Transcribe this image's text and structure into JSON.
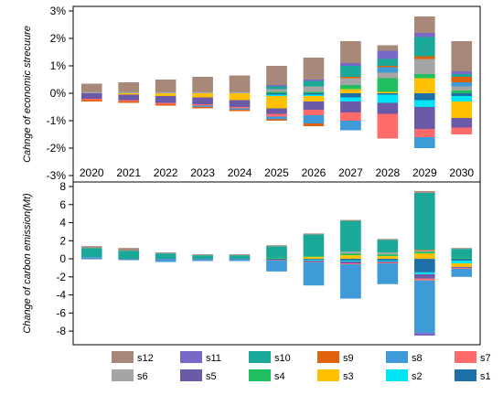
{
  "chart_data": [
    {
      "type": "bar",
      "stacked": true,
      "ylabel": "Cahnge of economic strecuure",
      "ylim": [
        -3,
        3
      ],
      "yticks": [
        "-3%",
        "-2%",
        "-1%",
        "0%",
        "1%",
        "2%",
        "3%"
      ],
      "ytick_values": [
        -3,
        -2,
        -1,
        0,
        1,
        2,
        3
      ],
      "categories": [
        "2020",
        "2021",
        "2022",
        "2023",
        "2024",
        "2025",
        "2026",
        "2027",
        "2028",
        "2029",
        "2030"
      ],
      "series": [
        {
          "name": "s1",
          "values": [
            0,
            0,
            0,
            0,
            0,
            -0.05,
            -0.05,
            -0.15,
            -0.05,
            -0.25,
            -0.1
          ]
        },
        {
          "name": "s2",
          "values": [
            0,
            0,
            0,
            0,
            0,
            -0.05,
            -0.05,
            -0.15,
            -0.3,
            -0.25,
            -0.2
          ]
        },
        {
          "name": "s3",
          "values": [
            0,
            -0.05,
            -0.1,
            -0.15,
            -0.25,
            -0.45,
            -0.2,
            0.15,
            0.05,
            0.55,
            -0.6
          ]
        },
        {
          "name": "s4",
          "values": [
            0,
            0,
            0,
            0,
            0,
            0.05,
            0.05,
            0.15,
            0.5,
            0.15,
            0.1
          ]
        },
        {
          "name": "s5",
          "values": [
            -0.2,
            -0.2,
            -0.25,
            -0.25,
            -0.25,
            -0.2,
            -0.3,
            -0.4,
            -0.4,
            -0.8,
            -0.35
          ]
        },
        {
          "name": "s6",
          "values": [
            0.05,
            0.05,
            0.05,
            0.05,
            0.05,
            0.1,
            0.2,
            0.25,
            0.2,
            0.55,
            0.15
          ]
        },
        {
          "name": "s7",
          "values": [
            -0.05,
            -0.05,
            -0.05,
            -0.05,
            -0.05,
            -0.1,
            -0.2,
            -0.3,
            -0.9,
            -0.3,
            -0.25
          ]
        },
        {
          "name": "s8",
          "values": [
            0,
            0,
            0,
            -0.05,
            -0.05,
            -0.1,
            -0.3,
            -0.35,
            0.2,
            -0.4,
            0.15
          ]
        },
        {
          "name": "s9",
          "values": [
            -0.05,
            -0.05,
            -0.05,
            -0.05,
            -0.05,
            -0.05,
            -0.1,
            0.05,
            0.05,
            0.1,
            0.2
          ]
        },
        {
          "name": "s10",
          "values": [
            0,
            0,
            0,
            0,
            0,
            0.1,
            0.2,
            0.4,
            0.25,
            0.7,
            0.1
          ]
        },
        {
          "name": "s11",
          "values": [
            0,
            0,
            0,
            0,
            0,
            0.05,
            0.05,
            0.1,
            0.3,
            0.15,
            0.1
          ]
        },
        {
          "name": "s12",
          "values": [
            0.3,
            0.35,
            0.45,
            0.55,
            0.6,
            0.7,
            0.8,
            0.8,
            0.2,
            0.6,
            1.1
          ]
        }
      ]
    },
    {
      "type": "bar",
      "stacked": true,
      "ylabel": "Change of carbon emission(Mt)",
      "ylim": [
        -9,
        8
      ],
      "yticks": [
        "-8",
        "-6",
        "-4",
        "-2",
        "0",
        "2",
        "4",
        "6",
        "8"
      ],
      "ytick_values": [
        -8,
        -6,
        -4,
        -2,
        0,
        2,
        4,
        6,
        8
      ],
      "categories": [
        "2020",
        "2021",
        "2022",
        "2023",
        "2024",
        "2025",
        "2026",
        "2027",
        "2028",
        "2029",
        "2030"
      ],
      "series": [
        {
          "name": "s1",
          "values": [
            0,
            0,
            0,
            0,
            0,
            -0.1,
            -0.1,
            -0.2,
            -0.2,
            -1.5,
            -0.2
          ]
        },
        {
          "name": "s2",
          "values": [
            0,
            0,
            0,
            0,
            0,
            0,
            -0.1,
            -0.1,
            -0.1,
            -0.2,
            -0.3
          ]
        },
        {
          "name": "s3",
          "values": [
            0,
            0,
            0,
            0,
            0,
            0,
            0.2,
            0.4,
            0.3,
            0.6,
            -0.4
          ]
        },
        {
          "name": "s4",
          "values": [
            0,
            0,
            0,
            0,
            0,
            0.1,
            0.1,
            0.2,
            0.2,
            0.2,
            0.1
          ]
        },
        {
          "name": "s5",
          "values": [
            -0.05,
            -0.05,
            -0.05,
            -0.05,
            -0.05,
            -0.05,
            -0.1,
            -0.2,
            -0.1,
            -0.5,
            -0.1
          ]
        },
        {
          "name": "s6",
          "values": [
            0,
            0,
            0,
            0,
            0,
            0,
            0,
            0.2,
            0.2,
            0.1,
            0
          ]
        },
        {
          "name": "s7",
          "values": [
            0,
            0,
            0,
            0,
            0,
            -0.05,
            -0.05,
            -0.1,
            -0.1,
            -0.2,
            -0.1
          ]
        },
        {
          "name": "s8",
          "values": [
            0.2,
            -0.1,
            -0.3,
            -0.2,
            -0.2,
            -1.2,
            -2.6,
            -3.8,
            -2.3,
            -5.8,
            -0.9
          ]
        },
        {
          "name": "s9",
          "values": [
            0,
            0,
            0,
            0,
            0,
            0,
            0,
            0,
            0,
            0.1,
            0
          ]
        },
        {
          "name": "s10",
          "values": [
            1.0,
            0.9,
            0.6,
            0.4,
            0.4,
            1.3,
            2.4,
            3.4,
            1.4,
            6.3,
            1.0
          ]
        },
        {
          "name": "s11",
          "values": [
            0,
            0,
            0,
            0,
            0,
            0,
            0,
            0,
            0,
            -0.3,
            0
          ]
        },
        {
          "name": "s12",
          "values": [
            0.2,
            0.3,
            0.1,
            0.1,
            0.1,
            0.1,
            0.1,
            0.1,
            0.1,
            0.2,
            0.1
          ]
        }
      ]
    }
  ],
  "colors": {
    "s1": "#1f6fa8",
    "s2": "#00e5f5",
    "s3": "#ffc000",
    "s4": "#20c060",
    "s5": "#6a5aa8",
    "s6": "#a5a5a5",
    "s7": "#ff6b6b",
    "s8": "#3f9ad8",
    "s9": "#e0620a",
    "s10": "#1aa898",
    "s11": "#7a68c8",
    "s12": "#a88878"
  },
  "legend": {
    "position": "bottom",
    "row1": [
      "s12",
      "s11",
      "s10",
      "s9",
      "s8",
      "s7"
    ],
    "row2": [
      "s6",
      "s5",
      "s4",
      "s3",
      "s2",
      "s1"
    ]
  }
}
